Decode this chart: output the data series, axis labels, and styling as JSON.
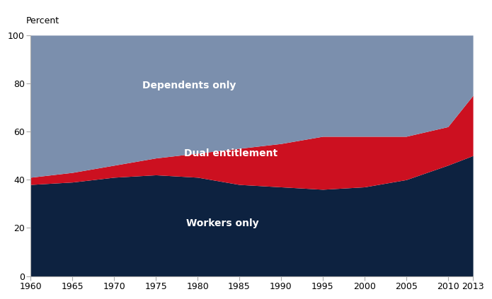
{
  "years": [
    1960,
    1965,
    1970,
    1975,
    1980,
    1985,
    1990,
    1995,
    2000,
    2005,
    2010,
    2013
  ],
  "workers_only": [
    38,
    39,
    41,
    42,
    41,
    38,
    37,
    36,
    37,
    40,
    46,
    50
  ],
  "dual_entitlement": [
    3,
    4,
    5,
    7,
    10,
    15,
    18,
    22,
    21,
    18,
    16,
    25
  ],
  "dependents_only": [
    59,
    57,
    54,
    51,
    49,
    47,
    45,
    42,
    42,
    42,
    38,
    25
  ],
  "colors": {
    "workers_only": "#0d2240",
    "dual_entitlement": "#cc1020",
    "dependents_only": "#7b8fad"
  },
  "ylabel": "Percent",
  "ylim": [
    0,
    100
  ],
  "yticks": [
    0,
    20,
    40,
    60,
    80,
    100
  ],
  "xticks": [
    1960,
    1965,
    1970,
    1975,
    1980,
    1985,
    1990,
    1995,
    2000,
    2005,
    2010,
    2013
  ],
  "background_color": "#ffffff",
  "label_color": "#ffffff",
  "label_fontsize": 10
}
